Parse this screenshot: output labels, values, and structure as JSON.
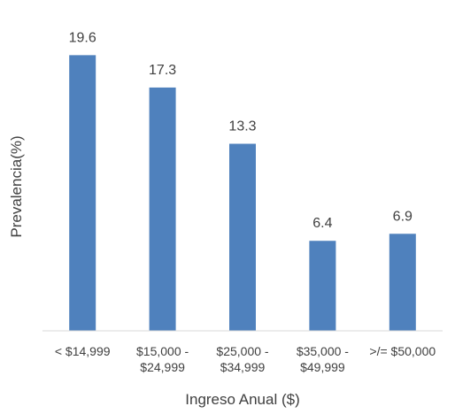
{
  "chart_data": {
    "type": "bar",
    "categories": [
      [
        "< $14,999"
      ],
      [
        "$15,000 -",
        "$24,999"
      ],
      [
        "$25,000 -",
        "$34,999"
      ],
      [
        "$35,000 -",
        "$49,999"
      ],
      [
        ">/= $50,000"
      ]
    ],
    "values": [
      19.6,
      17.3,
      13.3,
      6.4,
      6.9
    ],
    "data_labels": [
      "19.6",
      "17.3",
      "13.3",
      "6.4",
      "6.9"
    ],
    "xlabel": "Ingreso Anual ($)",
    "ylabel": "Prevalencia(%)",
    "ylim": [
      0,
      20
    ],
    "grid": false,
    "legend": false,
    "bar_color": "#4f81bd",
    "axis_color": "#d9d9d9",
    "text_color": "#404040"
  }
}
